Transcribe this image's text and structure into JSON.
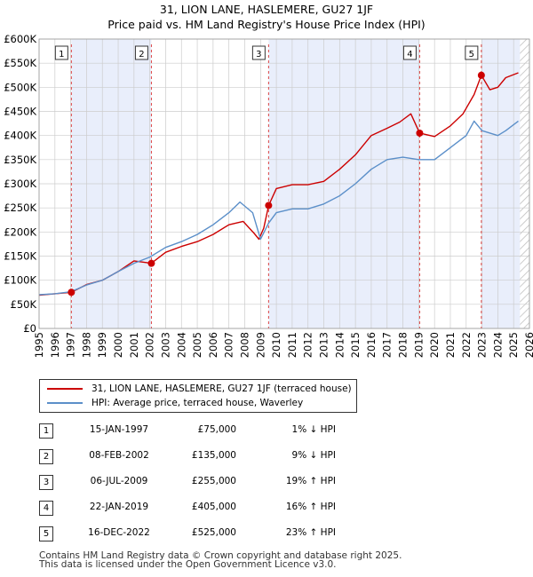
{
  "title": {
    "line1": "31, LION LANE, HASLEMERE, GU27 1JF",
    "line2": "Price paid vs. HM Land Registry's House Price Index (HPI)"
  },
  "legend": {
    "property_label": "31, LION LANE, HASLEMERE, GU27 1JF (terraced house)",
    "hpi_label": "HPI: Average price, terraced house, Waverley"
  },
  "colors": {
    "property_line": "#cc0000",
    "hpi_line": "#5b8fc9",
    "shade": "#e9eefb",
    "vline": "#dd4444",
    "grid": "#cccccc"
  },
  "chart_data": {
    "type": "line",
    "x_range": [
      1995,
      2026
    ],
    "ylim": [
      0,
      600000
    ],
    "y_ticks": [
      {
        "value": 0,
        "label": "£0"
      },
      {
        "value": 50000,
        "label": "£50K"
      },
      {
        "value": 100000,
        "label": "£100K"
      },
      {
        "value": 150000,
        "label": "£150K"
      },
      {
        "value": 200000,
        "label": "£200K"
      },
      {
        "value": 250000,
        "label": "£250K"
      },
      {
        "value": 300000,
        "label": "£300K"
      },
      {
        "value": 350000,
        "label": "£350K"
      },
      {
        "value": 400000,
        "label": "£400K"
      },
      {
        "value": 450000,
        "label": "£450K"
      },
      {
        "value": 500000,
        "label": "£500K"
      },
      {
        "value": 550000,
        "label": "£550K"
      },
      {
        "value": 600000,
        "label": "£600K"
      }
    ],
    "x_ticks": [
      "1995",
      "1996",
      "1997",
      "1998",
      "1999",
      "2000",
      "2001",
      "2002",
      "2003",
      "2004",
      "2005",
      "2006",
      "2007",
      "2008",
      "2009",
      "2010",
      "2011",
      "2012",
      "2013",
      "2014",
      "2015",
      "2016",
      "2017",
      "2018",
      "2019",
      "2020",
      "2021",
      "2022",
      "2023",
      "2024",
      "2025",
      "2026"
    ],
    "series": [
      {
        "name": "31, LION LANE, HASLEMERE, GU27 1JF (terraced house)",
        "color": "#cc0000",
        "points": [
          [
            1995.0,
            69000
          ],
          [
            1996.0,
            72000
          ],
          [
            1997.04,
            75000
          ],
          [
            1998.0,
            91000
          ],
          [
            1999.0,
            100000
          ],
          [
            2000.0,
            118000
          ],
          [
            2001.0,
            140000
          ],
          [
            2002.1,
            135000
          ],
          [
            2003.0,
            158000
          ],
          [
            2004.0,
            170000
          ],
          [
            2005.0,
            180000
          ],
          [
            2006.0,
            195000
          ],
          [
            2007.0,
            215000
          ],
          [
            2007.9,
            222000
          ],
          [
            2008.6,
            197000
          ],
          [
            2008.9,
            185000
          ],
          [
            2009.2,
            208000
          ],
          [
            2009.51,
            255000
          ],
          [
            2010.0,
            290000
          ],
          [
            2011.0,
            298000
          ],
          [
            2012.0,
            298000
          ],
          [
            2013.0,
            305000
          ],
          [
            2014.0,
            330000
          ],
          [
            2015.0,
            360000
          ],
          [
            2016.0,
            400000
          ],
          [
            2017.0,
            415000
          ],
          [
            2017.8,
            428000
          ],
          [
            2018.5,
            445000
          ],
          [
            2019.06,
            405000
          ],
          [
            2020.0,
            398000
          ],
          [
            2021.0,
            420000
          ],
          [
            2021.8,
            445000
          ],
          [
            2022.5,
            485000
          ],
          [
            2022.96,
            525000
          ],
          [
            2023.5,
            495000
          ],
          [
            2024.0,
            500000
          ],
          [
            2024.5,
            520000
          ],
          [
            2025.3,
            530000
          ]
        ]
      },
      {
        "name": "HPI: Average price, terraced house, Waverley",
        "color": "#5b8fc9",
        "points": [
          [
            1995.0,
            70000
          ],
          [
            1996.0,
            72000
          ],
          [
            1997.0,
            76000
          ],
          [
            1998.0,
            90000
          ],
          [
            1999.0,
            100000
          ],
          [
            2000.0,
            118000
          ],
          [
            2001.0,
            135000
          ],
          [
            2002.0,
            148000
          ],
          [
            2003.0,
            168000
          ],
          [
            2004.0,
            180000
          ],
          [
            2005.0,
            195000
          ],
          [
            2006.0,
            215000
          ],
          [
            2007.0,
            240000
          ],
          [
            2007.7,
            262000
          ],
          [
            2008.5,
            240000
          ],
          [
            2009.0,
            185000
          ],
          [
            2009.5,
            218000
          ],
          [
            2010.0,
            240000
          ],
          [
            2011.0,
            248000
          ],
          [
            2012.0,
            248000
          ],
          [
            2013.0,
            258000
          ],
          [
            2014.0,
            275000
          ],
          [
            2015.0,
            300000
          ],
          [
            2016.0,
            330000
          ],
          [
            2017.0,
            350000
          ],
          [
            2018.0,
            355000
          ],
          [
            2019.0,
            350000
          ],
          [
            2020.0,
            350000
          ],
          [
            2021.0,
            375000
          ],
          [
            2022.0,
            400000
          ],
          [
            2022.5,
            430000
          ],
          [
            2023.0,
            410000
          ],
          [
            2024.0,
            400000
          ],
          [
            2024.5,
            410000
          ],
          [
            2025.3,
            430000
          ]
        ]
      }
    ],
    "sales": [
      {
        "num": "1",
        "x": 1997.04,
        "price": 75000
      },
      {
        "num": "2",
        "x": 2002.1,
        "price": 135000
      },
      {
        "num": "3",
        "x": 2009.51,
        "price": 255000
      },
      {
        "num": "4",
        "x": 2019.06,
        "price": 405000
      },
      {
        "num": "5",
        "x": 2022.96,
        "price": 525000
      }
    ],
    "shaded_ranges": [
      [
        1997.04,
        2002.1
      ],
      [
        2009.51,
        2019.06
      ],
      [
        2022.96,
        2025.4
      ]
    ],
    "hatched_from": 2025.4
  },
  "sales_table": [
    {
      "num": "1",
      "date": "15-JAN-1997",
      "price": "£75,000",
      "hpi": "1% ↓ HPI"
    },
    {
      "num": "2",
      "date": "08-FEB-2002",
      "price": "£135,000",
      "hpi": "9% ↓ HPI"
    },
    {
      "num": "3",
      "date": "06-JUL-2009",
      "price": "£255,000",
      "hpi": "19% ↑ HPI"
    },
    {
      "num": "4",
      "date": "22-JAN-2019",
      "price": "£405,000",
      "hpi": "16% ↑ HPI"
    },
    {
      "num": "5",
      "date": "16-DEC-2022",
      "price": "£525,000",
      "hpi": "23% ↑ HPI"
    }
  ],
  "footer": {
    "line1": "Contains HM Land Registry data © Crown copyright and database right 2025.",
    "line2": "This data is licensed under the Open Government Licence v3.0."
  }
}
